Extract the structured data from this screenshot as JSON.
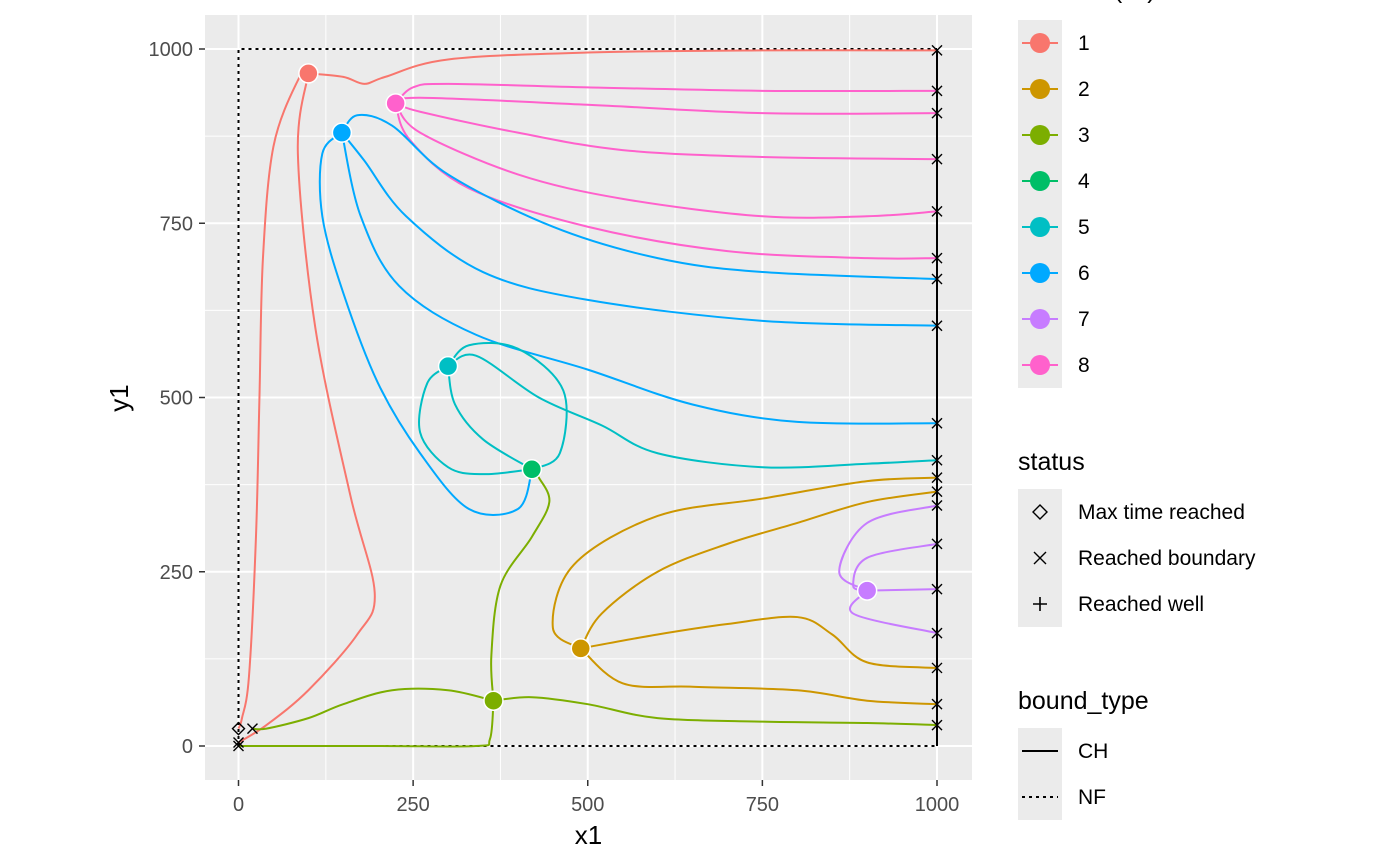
{
  "chart_data": {
    "type": "line",
    "xlabel": "x1",
    "ylabel": "y1",
    "xlim": [
      -50,
      1050
    ],
    "ylim": [
      -50,
      1050
    ],
    "xticks": [
      0,
      250,
      500,
      750,
      1000
    ],
    "yticks": [
      0,
      250,
      500,
      750,
      1000
    ],
    "grid": true,
    "legends": [
      {
        "title": "as.factor(ID)",
        "kind": "color",
        "placement": "right",
        "entries": [
          {
            "label": "1",
            "color": "#F8766D"
          },
          {
            "label": "2",
            "color": "#CD9600"
          },
          {
            "label": "3",
            "color": "#7CAE00"
          },
          {
            "label": "4",
            "color": "#00BE67"
          },
          {
            "label": "5",
            "color": "#00BFC4"
          },
          {
            "label": "6",
            "color": "#00A9FF"
          },
          {
            "label": "7",
            "color": "#C77CFF"
          },
          {
            "label": "8",
            "color": "#FF61CC"
          }
        ]
      },
      {
        "title": "status",
        "kind": "shape",
        "placement": "right",
        "entries": [
          {
            "label": "Max time reached",
            "shape": "diamond"
          },
          {
            "label": "Reached boundary",
            "shape": "x"
          },
          {
            "label": "Reached well",
            "shape": "plus"
          }
        ]
      },
      {
        "title": "bound_type",
        "kind": "linetype",
        "placement": "right",
        "entries": [
          {
            "label": "CH",
            "linetype": "solid"
          },
          {
            "label": "NF",
            "linetype": "dotted"
          }
        ]
      }
    ],
    "boundaries": [
      {
        "type": "NF",
        "points": [
          [
            0,
            0
          ],
          [
            0,
            1000
          ],
          [
            1000,
            1000
          ]
        ]
      },
      {
        "type": "NF",
        "points": [
          [
            0,
            0
          ],
          [
            1000,
            0
          ]
        ]
      },
      {
        "type": "CH",
        "points": [
          [
            1000,
            0
          ],
          [
            1000,
            1000
          ]
        ]
      }
    ],
    "wells": [
      {
        "ID": "1",
        "x": 100,
        "y": 965
      },
      {
        "ID": "2",
        "x": 490,
        "y": 140
      },
      {
        "ID": "3",
        "x": 365,
        "y": 65
      },
      {
        "ID": "4",
        "x": 420,
        "y": 397
      },
      {
        "ID": "5",
        "x": 300,
        "y": 545
      },
      {
        "ID": "6",
        "x": 148,
        "y": 880
      },
      {
        "ID": "7",
        "x": 900,
        "y": 223
      },
      {
        "ID": "8",
        "x": 225,
        "y": 922
      }
    ],
    "series": [
      {
        "ID": "1",
        "status": "Max time reached",
        "points": [
          [
            100,
            965
          ],
          [
            85,
            955
          ],
          [
            50,
            860
          ],
          [
            35,
            700
          ],
          [
            30,
            500
          ],
          [
            25,
            300
          ],
          [
            15,
            100
          ],
          [
            5,
            40
          ],
          [
            0,
            25
          ]
        ]
      },
      {
        "ID": "1",
        "status": "Reached boundary",
        "points": [
          [
            100,
            965
          ],
          [
            150,
            960
          ],
          [
            180,
            950
          ],
          [
            210,
            960
          ],
          [
            300,
            985
          ],
          [
            500,
            995
          ],
          [
            750,
            998
          ],
          [
            1000,
            998
          ]
        ]
      },
      {
        "ID": "1",
        "status": "Reached boundary",
        "points": [
          [
            100,
            965
          ],
          [
            85,
            850
          ],
          [
            110,
            600
          ],
          [
            160,
            360
          ],
          [
            195,
            220
          ],
          [
            170,
            160
          ],
          [
            100,
            80
          ],
          [
            40,
            30
          ],
          [
            0,
            5
          ]
        ]
      },
      {
        "ID": "8",
        "status": "Reached boundary",
        "points": [
          [
            225,
            922
          ],
          [
            250,
            945
          ],
          [
            300,
            950
          ],
          [
            500,
            945
          ],
          [
            750,
            940
          ],
          [
            1000,
            940
          ]
        ]
      },
      {
        "ID": "8",
        "status": "Reached boundary",
        "points": [
          [
            225,
            922
          ],
          [
            260,
            930
          ],
          [
            500,
            920
          ],
          [
            750,
            908
          ],
          [
            1000,
            908
          ]
        ]
      },
      {
        "ID": "8",
        "status": "Reached boundary",
        "points": [
          [
            225,
            922
          ],
          [
            260,
            910
          ],
          [
            400,
            880
          ],
          [
            550,
            855
          ],
          [
            750,
            845
          ],
          [
            1000,
            842
          ]
        ]
      },
      {
        "ID": "8",
        "status": "Reached boundary",
        "points": [
          [
            225,
            922
          ],
          [
            260,
            880
          ],
          [
            400,
            820
          ],
          [
            550,
            785
          ],
          [
            750,
            760
          ],
          [
            900,
            760
          ],
          [
            1000,
            767
          ]
        ]
      },
      {
        "ID": "8",
        "status": "Reached boundary",
        "points": [
          [
            225,
            922
          ],
          [
            245,
            870
          ],
          [
            330,
            800
          ],
          [
            500,
            745
          ],
          [
            700,
            710
          ],
          [
            900,
            700
          ],
          [
            1000,
            700
          ]
        ]
      },
      {
        "ID": "6",
        "status": "Reached boundary",
        "points": [
          [
            148,
            880
          ],
          [
            170,
            905
          ],
          [
            220,
            890
          ],
          [
            300,
            820
          ],
          [
            450,
            745
          ],
          [
            600,
            700
          ],
          [
            750,
            680
          ],
          [
            1000,
            670
          ]
        ]
      },
      {
        "ID": "6",
        "status": "Reached boundary",
        "points": [
          [
            148,
            880
          ],
          [
            180,
            840
          ],
          [
            240,
            760
          ],
          [
            350,
            680
          ],
          [
            500,
            640
          ],
          [
            750,
            610
          ],
          [
            1000,
            603
          ]
        ]
      },
      {
        "ID": "6",
        "status": "Reached boundary",
        "points": [
          [
            148,
            880
          ],
          [
            175,
            760
          ],
          [
            230,
            660
          ],
          [
            340,
            590
          ],
          [
            500,
            540
          ],
          [
            650,
            490
          ],
          [
            800,
            465
          ],
          [
            1000,
            463
          ]
        ]
      },
      {
        "ID": "6",
        "status": "Reached boundary",
        "points": [
          [
            148,
            880
          ],
          [
            120,
            850
          ],
          [
            120,
            760
          ],
          [
            150,
            650
          ],
          [
            200,
            520
          ],
          [
            260,
            420
          ],
          [
            330,
            340
          ],
          [
            400,
            340
          ],
          [
            420,
            395
          ]
        ]
      },
      {
        "ID": "5",
        "status": "Reached well",
        "points": [
          [
            300,
            545
          ],
          [
            330,
            575
          ],
          [
            400,
            570
          ],
          [
            465,
            510
          ],
          [
            460,
            420
          ],
          [
            420,
            397
          ]
        ]
      },
      {
        "ID": "5",
        "status": "Reached well",
        "points": [
          [
            300,
            545
          ],
          [
            310,
            490
          ],
          [
            350,
            440
          ],
          [
            420,
            397
          ]
        ]
      },
      {
        "ID": "5",
        "status": "Reached well",
        "points": [
          [
            300,
            545
          ],
          [
            270,
            520
          ],
          [
            260,
            450
          ],
          [
            300,
            400
          ],
          [
            350,
            390
          ],
          [
            420,
            397
          ]
        ]
      },
      {
        "ID": "5",
        "status": "Reached boundary",
        "points": [
          [
            300,
            545
          ],
          [
            340,
            560
          ],
          [
            430,
            500
          ],
          [
            520,
            460
          ],
          [
            600,
            420
          ],
          [
            750,
            400
          ],
          [
            900,
            405
          ],
          [
            1000,
            410
          ]
        ]
      },
      {
        "ID": "3",
        "status": "Reached well",
        "points": [
          [
            365,
            65
          ],
          [
            362,
            130
          ],
          [
            375,
            230
          ],
          [
            420,
            300
          ],
          [
            445,
            350
          ],
          [
            430,
            385
          ],
          [
            420,
            397
          ]
        ]
      },
      {
        "ID": "3",
        "status": "Reached boundary",
        "points": [
          [
            365,
            65
          ],
          [
            360,
            10
          ],
          [
            340,
            0
          ],
          [
            200,
            0
          ],
          [
            0,
            0
          ]
        ]
      },
      {
        "ID": "3",
        "status": "Reached boundary",
        "points": [
          [
            365,
            65
          ],
          [
            300,
            80
          ],
          [
            220,
            80
          ],
          [
            150,
            60
          ],
          [
            100,
            40
          ],
          [
            40,
            25
          ],
          [
            20,
            25
          ]
        ]
      },
      {
        "ID": "3",
        "status": "Reached boundary",
        "points": [
          [
            365,
            65
          ],
          [
            420,
            70
          ],
          [
            500,
            60
          ],
          [
            600,
            40
          ],
          [
            750,
            35
          ],
          [
            900,
            33
          ],
          [
            1000,
            30
          ]
        ]
      },
      {
        "ID": "2",
        "status": "Reached boundary",
        "points": [
          [
            490,
            140
          ],
          [
            520,
            190
          ],
          [
            600,
            250
          ],
          [
            700,
            290
          ],
          [
            800,
            320
          ],
          [
            900,
            350
          ],
          [
            1000,
            365
          ]
        ]
      },
      {
        "ID": "2",
        "status": "Reached boundary",
        "points": [
          [
            490,
            140
          ],
          [
            450,
            170
          ],
          [
            480,
            260
          ],
          [
            600,
            330
          ],
          [
            750,
            355
          ],
          [
            900,
            380
          ],
          [
            1000,
            385
          ]
        ]
      },
      {
        "ID": "2",
        "status": "Reached boundary",
        "points": [
          [
            490,
            140
          ],
          [
            600,
            160
          ],
          [
            700,
            175
          ],
          [
            800,
            185
          ],
          [
            850,
            160
          ],
          [
            900,
            120
          ],
          [
            1000,
            112
          ]
        ]
      },
      {
        "ID": "2",
        "status": "Reached boundary",
        "points": [
          [
            490,
            140
          ],
          [
            550,
            90
          ],
          [
            650,
            85
          ],
          [
            800,
            80
          ],
          [
            900,
            65
          ],
          [
            1000,
            60
          ]
        ]
      },
      {
        "ID": "7",
        "status": "Reached boundary",
        "points": [
          [
            900,
            223
          ],
          [
            880,
            230
          ],
          [
            900,
            270
          ],
          [
            1000,
            290
          ]
        ]
      },
      {
        "ID": "7",
        "status": "Reached boundary",
        "points": [
          [
            900,
            223
          ],
          [
            860,
            250
          ],
          [
            900,
            320
          ],
          [
            1000,
            345
          ]
        ]
      },
      {
        "ID": "7",
        "status": "Reached boundary",
        "points": [
          [
            900,
            223
          ],
          [
            1000,
            225
          ]
        ]
      },
      {
        "ID": "7",
        "status": "Reached boundary",
        "points": [
          [
            900,
            223
          ],
          [
            880,
            190
          ],
          [
            1000,
            162
          ]
        ]
      }
    ]
  }
}
